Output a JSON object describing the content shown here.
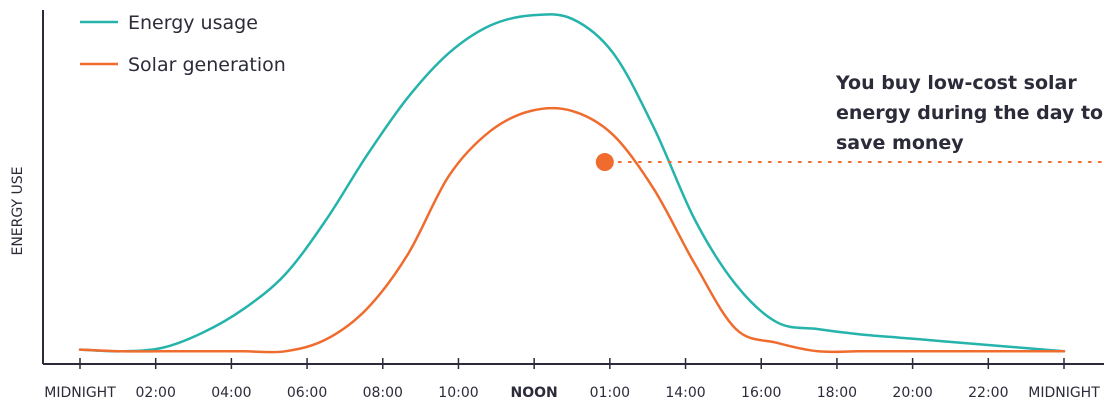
{
  "chart_data": {
    "type": "line",
    "xlabel": "",
    "ylabel": "ENERGY USE",
    "x_ticks": [
      {
        "label": "MIDNIGHT",
        "bold": false
      },
      {
        "label": "02:00",
        "bold": false
      },
      {
        "label": "04:00",
        "bold": false
      },
      {
        "label": "06:00",
        "bold": false
      },
      {
        "label": "08:00",
        "bold": false
      },
      {
        "label": "10:00",
        "bold": false
      },
      {
        "label": "NOON",
        "bold": true
      },
      {
        "label": "01:00",
        "bold": false
      },
      {
        "label": "14:00",
        "bold": false
      },
      {
        "label": "16:00",
        "bold": false
      },
      {
        "label": "18:00",
        "bold": false
      },
      {
        "label": "20:00",
        "bold": false
      },
      {
        "label": "22:00",
        "bold": false
      },
      {
        "label": "MIDNIGHT",
        "bold": false
      }
    ],
    "xlim": [
      0,
      24
    ],
    "ylim": [
      0,
      100
    ],
    "series": [
      {
        "name": "Energy usage",
        "color": "#25b3ab",
        "x": [
          0,
          1,
          2,
          3,
          4,
          5,
          6,
          7,
          8,
          9,
          10,
          11,
          12,
          13,
          14,
          15,
          16,
          17,
          18,
          19,
          20,
          21,
          22,
          23,
          24
        ],
        "y": [
          1,
          0.5,
          1.5,
          6,
          13,
          23,
          39,
          58,
          75,
          88,
          96,
          99,
          98,
          88,
          66,
          39,
          20,
          9,
          7,
          5.5,
          4.5,
          3.5,
          2.5,
          1.5,
          0.5
        ]
      },
      {
        "name": "Solar generation",
        "color": "#ef6c2e",
        "x": [
          0,
          1,
          2,
          3,
          4,
          5,
          6,
          7,
          8,
          9,
          10,
          11,
          12,
          13,
          14,
          15,
          16,
          17,
          18,
          19,
          20,
          21,
          22,
          23,
          24
        ],
        "y": [
          1,
          0.5,
          0.5,
          0.5,
          0.5,
          0.5,
          4,
          13,
          29,
          52,
          65,
          71,
          71,
          64,
          48,
          26,
          7,
          3,
          0.5,
          0.5,
          0.5,
          0.5,
          0.5,
          0.5,
          0.5
        ]
      }
    ],
    "marker": {
      "x": 12.8,
      "y": 56,
      "color": "#ef6c2e"
    },
    "annotation": "You buy low-cost solar energy during the day to save money",
    "legend": "top-left",
    "grid": false
  },
  "colors": {
    "axis": "#2b2b3a",
    "text": "#2b2b3a"
  }
}
